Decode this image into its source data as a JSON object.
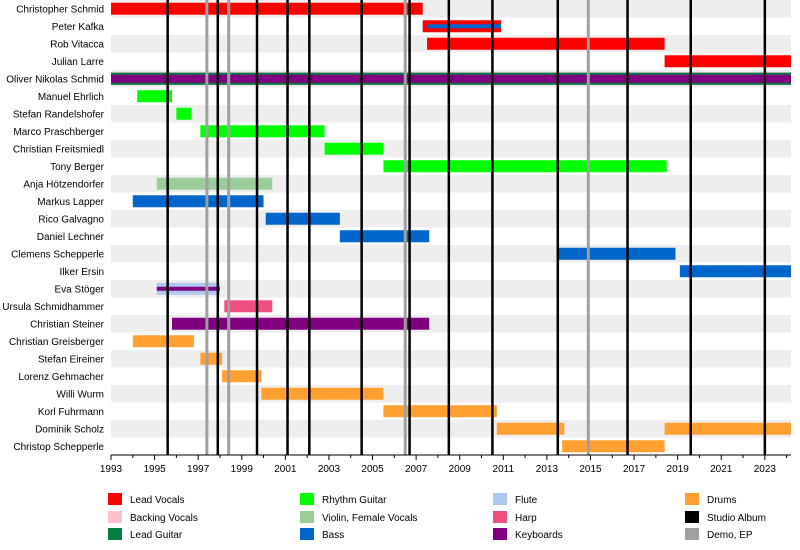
{
  "chart_data": {
    "type": "timeline",
    "title": "",
    "xlabel": "",
    "ylabel": "",
    "xlim": [
      1993.0,
      2024.2
    ],
    "x_ticks": [
      1993,
      1995,
      1997,
      1999,
      2001,
      2003,
      2005,
      2007,
      2009,
      2011,
      2013,
      2015,
      2017,
      2019,
      2021,
      2023
    ],
    "grid": true,
    "legend_position": "bottom",
    "members": [
      "Christopher Schmid",
      "Peter Kafka",
      "Rob Vitacca",
      "Julian Larre",
      "Oliver Nikolas Schmid",
      "Manuel Ehrlich",
      "Stefan Randelshofer",
      "Marco Praschberger",
      "Christian Freitsmiedl",
      "Tony Berger",
      "Anja Hötzendorfer",
      "Markus Lapper",
      "Rico Galvagno",
      "Daniel Lechner",
      "Clemens Schepperle",
      "Ilker Ersin",
      "Eva Stöger",
      "Ursula Schmidhammer",
      "Christian Steiner",
      "Christian Greisberger",
      "Stefan Eireiner",
      "Lorenz Gehmacher",
      "Willi Wurm",
      "Korl Fuhrmann",
      "Dominik Scholz",
      "Christop Schepperle"
    ],
    "roles": [
      {
        "name": "Lead Vocals",
        "color": "#ff0000"
      },
      {
        "name": "Backing Vocals",
        "color": "#ffc0cb"
      },
      {
        "name": "Lead Guitar",
        "color": "#008040"
      },
      {
        "name": "Rhythm Guitar",
        "color": "#00ff00"
      },
      {
        "name": "Violin, Female Vocals",
        "color": "#9acd9a"
      },
      {
        "name": "Bass",
        "color": "#0066cc"
      },
      {
        "name": "Flute",
        "color": "#b0c8f0"
      },
      {
        "name": "Harp",
        "color": "#f05080"
      },
      {
        "name": "Keyboards",
        "color": "#800080"
      },
      {
        "name": "Drums",
        "color": "#ffa030"
      },
      {
        "name": "Studio Album",
        "color": "#000000"
      },
      {
        "name": "Demo, EP",
        "color": "#a0a0a0"
      }
    ],
    "bars": [
      {
        "member": 0,
        "role": "Lead Vocals",
        "start": 1993.0,
        "end": 2007.3
      },
      {
        "member": 1,
        "role": "Lead Vocals",
        "start": 2007.3,
        "end": 2010.9
      },
      {
        "member": 1,
        "role": "Bass",
        "start": 2007.5,
        "end": 2010.9,
        "style": "thin"
      },
      {
        "member": 2,
        "role": "Lead Vocals",
        "start": 2007.5,
        "end": 2018.4
      },
      {
        "member": 3,
        "role": "Lead Vocals",
        "start": 2018.4,
        "end": 2024.2
      },
      {
        "member": 4,
        "role": "Keyboards",
        "start": 1993.0,
        "end": 2024.2
      },
      {
        "member": 4,
        "role": "Lead Guitar",
        "start": 1993.0,
        "end": 2024.2,
        "style": "outline"
      },
      {
        "member": 5,
        "role": "Rhythm Guitar",
        "start": 1994.2,
        "end": 1995.8
      },
      {
        "member": 6,
        "role": "Rhythm Guitar",
        "start": 1996.0,
        "end": 1996.7
      },
      {
        "member": 7,
        "role": "Rhythm Guitar",
        "start": 1997.1,
        "end": 2002.8
      },
      {
        "member": 8,
        "role": "Rhythm Guitar",
        "start": 2002.8,
        "end": 2005.5
      },
      {
        "member": 9,
        "role": "Rhythm Guitar",
        "start": 2005.5,
        "end": 2018.5
      },
      {
        "member": 10,
        "role": "Violin, Female Vocals",
        "start": 1995.1,
        "end": 2000.4
      },
      {
        "member": 11,
        "role": "Bass",
        "start": 1994.0,
        "end": 2000.0
      },
      {
        "member": 12,
        "role": "Bass",
        "start": 2000.1,
        "end": 2003.5
      },
      {
        "member": 13,
        "role": "Bass",
        "start": 2003.5,
        "end": 2007.6
      },
      {
        "member": 14,
        "role": "Bass",
        "start": 2013.5,
        "end": 2018.9
      },
      {
        "member": 15,
        "role": "Bass",
        "start": 2019.1,
        "end": 2024.2
      },
      {
        "member": 16,
        "role": "Flute",
        "start": 1995.1,
        "end": 1998.0
      },
      {
        "member": 16,
        "role": "Keyboards",
        "start": 1995.1,
        "end": 1998.0,
        "style": "thin"
      },
      {
        "member": 17,
        "role": "Harp",
        "start": 1998.2,
        "end": 2000.4
      },
      {
        "member": 18,
        "role": "Keyboards",
        "start": 1995.8,
        "end": 2007.6
      },
      {
        "member": 19,
        "role": "Drums",
        "start": 1994.0,
        "end": 1996.8
      },
      {
        "member": 20,
        "role": "Drums",
        "start": 1997.1,
        "end": 1998.1
      },
      {
        "member": 21,
        "role": "Drums",
        "start": 1998.1,
        "end": 1999.9
      },
      {
        "member": 22,
        "role": "Drums",
        "start": 1999.9,
        "end": 2005.5
      },
      {
        "member": 23,
        "role": "Drums",
        "start": 2005.5,
        "end": 2010.7
      },
      {
        "member": 24,
        "role": "Drums",
        "start": 2010.7,
        "end": 2013.8
      },
      {
        "member": 24,
        "role": "Drums",
        "start": 2018.4,
        "end": 2024.2
      },
      {
        "member": 25,
        "role": "Drums",
        "start": 2013.7,
        "end": 2018.4
      }
    ],
    "studio_albums": [
      1995.6,
      1997.9,
      1999.7,
      2001.1,
      2002.1,
      2004.5,
      2006.7,
      2008.5,
      2010.5,
      2013.5,
      2016.7,
      2019.6,
      2023.0
    ],
    "demos_eps": [
      1997.4,
      1998.4,
      2006.5,
      2014.9
    ]
  }
}
